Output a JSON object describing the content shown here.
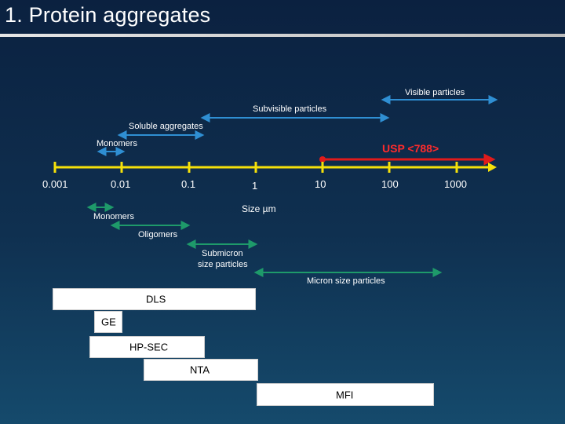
{
  "title": "1. Protein aggregates",
  "axis": {
    "unit_label": "Size µm",
    "ticks": [
      "0.001",
      "0.01",
      "0.1",
      "1",
      "10",
      "100",
      "1000"
    ]
  },
  "upper_ranges": {
    "visible": "Visible particles",
    "subvisible": "Subvisible particles",
    "soluble": "Soluble aggregates",
    "monomers": "Monomers"
  },
  "usp_label": "USP <788>",
  "lower_ranges": {
    "monomers": "Monomers",
    "oligomers": "Oligomers",
    "submicron_line1": "Submicron",
    "submicron_line2": "size particles",
    "micron": "Micron size particles"
  },
  "methods": {
    "dls": "DLS",
    "ge": "GE",
    "hpsec": "HP-SEC",
    "nta": "NTA",
    "mfi": "MFI"
  },
  "colors": {
    "axis": "#f5e10a",
    "upper_arrows": "#2f8fd3",
    "usp": "#e01b1b",
    "lower_arrows": "#1e9a6a"
  }
}
